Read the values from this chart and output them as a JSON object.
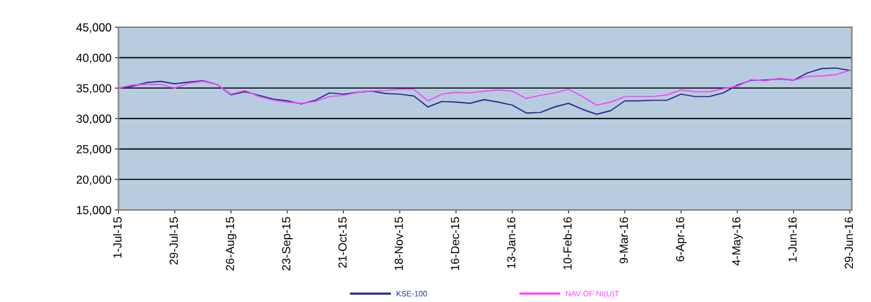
{
  "chart_data": {
    "type": "line",
    "x": [
      "2015-07-01",
      "2015-07-08",
      "2015-07-15",
      "2015-07-22",
      "2015-07-29",
      "2015-08-05",
      "2015-08-12",
      "2015-08-19",
      "2015-08-26",
      "2015-09-02",
      "2015-09-09",
      "2015-09-16",
      "2015-09-23",
      "2015-09-30",
      "2015-10-07",
      "2015-10-14",
      "2015-10-21",
      "2015-10-28",
      "2015-11-04",
      "2015-11-11",
      "2015-11-18",
      "2015-11-25",
      "2015-12-02",
      "2015-12-09",
      "2015-12-16",
      "2015-12-23",
      "2015-12-30",
      "2016-01-06",
      "2016-01-13",
      "2016-01-20",
      "2016-01-27",
      "2016-02-03",
      "2016-02-10",
      "2016-02-17",
      "2016-02-24",
      "2016-03-02",
      "2016-03-09",
      "2016-03-16",
      "2016-03-23",
      "2016-03-30",
      "2016-04-06",
      "2016-04-13",
      "2016-04-20",
      "2016-04-27",
      "2016-05-04",
      "2016-05-11",
      "2016-05-18",
      "2016-05-25",
      "2016-06-01",
      "2016-06-08",
      "2016-06-15",
      "2016-06-22",
      "2016-06-29"
    ],
    "series": [
      {
        "name": "KSE-100",
        "color": "#1f2a8c",
        "values": [
          35000,
          35300,
          35900,
          36100,
          35700,
          36000,
          36200,
          35600,
          33900,
          34400,
          33800,
          33200,
          32900,
          32400,
          33000,
          34200,
          34000,
          34300,
          34500,
          34100,
          34000,
          33700,
          31900,
          32800,
          32700,
          32500,
          33100,
          32700,
          32200,
          30900,
          31000,
          31900,
          32500,
          31500,
          30700,
          31300,
          32900,
          32900,
          33000,
          33000,
          34000,
          33600,
          33600,
          34200,
          35500,
          36300,
          36300,
          36500,
          36300,
          37500,
          38200,
          38300,
          37900
        ]
      },
      {
        "name": "NAV OF NI(U)T",
        "color": "#ff40ff",
        "values": [
          35000,
          35500,
          35600,
          35600,
          35000,
          35800,
          36100,
          35600,
          34000,
          34600,
          33600,
          33000,
          32700,
          32500,
          32800,
          33600,
          33800,
          34300,
          34500,
          34600,
          34800,
          34800,
          32900,
          34000,
          34300,
          34200,
          34500,
          34700,
          34500,
          33300,
          33800,
          34200,
          34800,
          33600,
          32200,
          32700,
          33600,
          33600,
          33600,
          33900,
          34700,
          34400,
          34400,
          34900,
          35300,
          36400,
          36200,
          36600,
          36300,
          36900,
          37000,
          37200,
          37900
        ]
      }
    ],
    "xlim": [
      "2015-07-01",
      "2016-06-30"
    ],
    "xticks": [
      {
        "value": "2015-07-01",
        "label": "1-Jul-15"
      },
      {
        "value": "2015-07-29",
        "label": "29-Jul-15"
      },
      {
        "value": "2015-08-26",
        "label": "26-Aug-15"
      },
      {
        "value": "2015-09-23",
        "label": "23-Sep-15"
      },
      {
        "value": "2015-10-21",
        "label": "21-Oct-15"
      },
      {
        "value": "2015-11-18",
        "label": "18-Nov-15"
      },
      {
        "value": "2015-12-16",
        "label": "16-Dec-15"
      },
      {
        "value": "2016-01-13",
        "label": "13-Jan-16"
      },
      {
        "value": "2016-02-10",
        "label": "10-Feb-16"
      },
      {
        "value": "2016-03-09",
        "label": "9-Mar-16"
      },
      {
        "value": "2016-04-06",
        "label": "6-Apr-16"
      },
      {
        "value": "2016-05-04",
        "label": "4-May-16"
      },
      {
        "value": "2016-06-01",
        "label": "1-Jun-16"
      },
      {
        "value": "2016-06-29",
        "label": "29-Jun-16"
      }
    ],
    "ylim": [
      15000,
      45000
    ],
    "yticks": [
      {
        "value": 15000,
        "label": "15,000"
      },
      {
        "value": 20000,
        "label": "20,000"
      },
      {
        "value": 25000,
        "label": "25,000"
      },
      {
        "value": 30000,
        "label": "30,000"
      },
      {
        "value": 35000,
        "label": "35,000"
      },
      {
        "value": 40000,
        "label": "40,000"
      },
      {
        "value": 45000,
        "label": "45,000"
      }
    ],
    "grid": "y",
    "legend": "bottom",
    "marker": "none",
    "line_style": "solid"
  }
}
